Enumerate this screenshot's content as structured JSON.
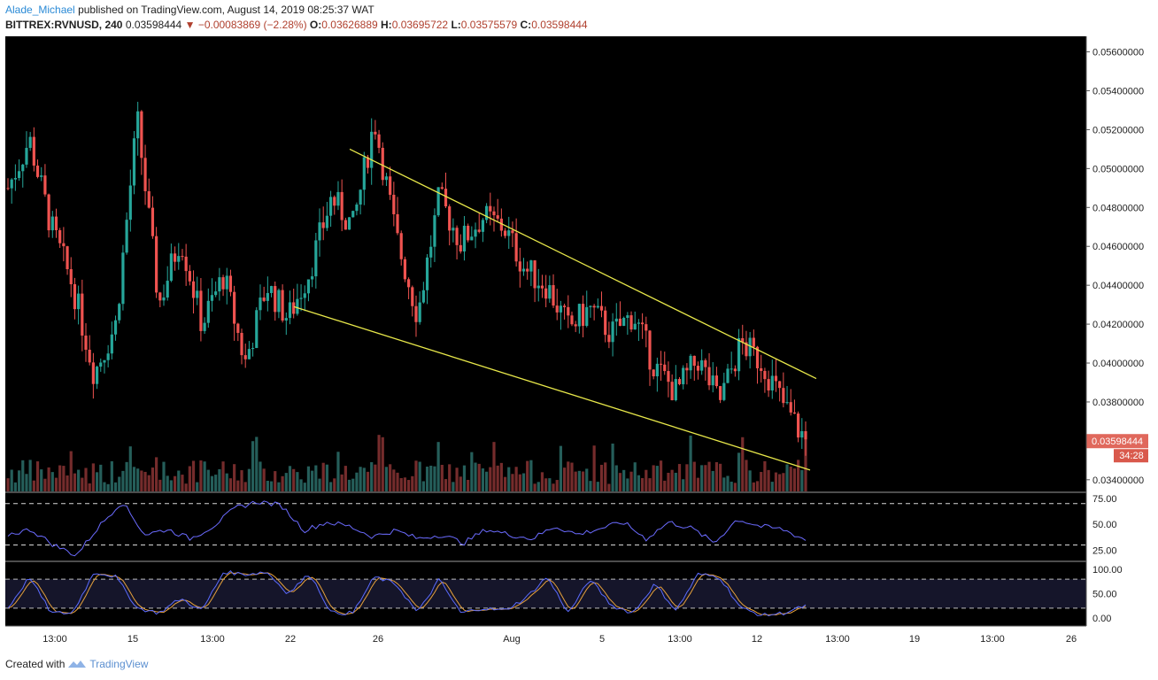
{
  "header": {
    "user": "Alade_Michael",
    "published": "published on TradingView.com, August 14, 2019 08:25:37 WAT",
    "symbol": "BITTREX:RVNUSD, 240",
    "last": "0.03598444",
    "change": "−0.00083869 (−2.28%)",
    "o_label": "O:",
    "o": "0.03626889",
    "h_label": "H:",
    "h": "0.03695722",
    "l_label": "L:",
    "l": "0.03575579",
    "c_label": "C:",
    "c": "0.03598444"
  },
  "footer": {
    "created": "Created with",
    "brand": "TradingView"
  },
  "colors": {
    "up": "#26a69a",
    "down": "#ef5350",
    "rsi": "#6b6bff",
    "stochK": "#5b6bff",
    "stochD": "#e6a13c",
    "trend": "#e8e84a"
  },
  "price_badge": "0.03598444",
  "countdown": "34:28",
  "chart_data": [
    {
      "type": "candlestick",
      "title": "",
      "ylim": [
        0.0334,
        0.0568
      ],
      "y_ticks": [
        "0.05600000",
        "0.05400000",
        "0.05200000",
        "0.05000000",
        "0.04800000",
        "0.04600000",
        "0.04400000",
        "0.04200000",
        "0.04000000",
        "0.03800000",
        "0.03600000",
        "0.03400000"
      ],
      "x_ticks": [
        "13:00",
        "15",
        "13:00",
        "22",
        "26",
        "Aug",
        "5",
        "13:00",
        "12",
        "13:00",
        "19",
        "13:00",
        "26"
      ],
      "keypoints": [
        0.049,
        0.0515,
        0.047,
        0.044,
        0.0395,
        0.042,
        0.0525,
        0.043,
        0.0465,
        0.042,
        0.0445,
        0.04,
        0.044,
        0.0423,
        0.0448,
        0.0485,
        0.047,
        0.0525,
        0.0465,
        0.0425,
        0.0485,
        0.0462,
        0.0475,
        0.047,
        0.0448,
        0.044,
        0.0418,
        0.0428,
        0.0415,
        0.0425,
        0.0398,
        0.0385,
        0.0402,
        0.038,
        0.041,
        0.04,
        0.0378,
        0.036
      ],
      "trendlines": [
        {
          "name": "upper",
          "from": [
            "26",
            0.051
          ],
          "to": [
            "13:00",
            0.0392
          ]
        },
        {
          "name": "lower",
          "from": [
            "22",
            0.0429
          ],
          "to": [
            "13:00",
            0.0345
          ]
        }
      ]
    },
    {
      "type": "line",
      "name": "RSI",
      "ylim": [
        15,
        80
      ],
      "y_ticks": [
        "75.00",
        "50.00",
        "25.00"
      ],
      "levels": [
        70,
        30
      ],
      "keypoints": [
        40,
        45,
        30,
        20,
        48,
        72,
        40,
        45,
        36,
        48,
        66,
        72,
        68,
        44,
        52,
        48,
        38,
        44,
        36,
        40,
        32,
        45,
        40,
        36,
        48,
        40,
        46,
        52,
        36,
        52,
        46,
        32,
        55,
        48,
        45,
        35
      ]
    },
    {
      "type": "line",
      "name": "Stochastic",
      "ylim": [
        -15,
        115
      ],
      "y_ticks": [
        "100.00",
        "50.00",
        "0.00"
      ],
      "levels": [
        80,
        20
      ],
      "keypoints": [
        20,
        85,
        10,
        10,
        95,
        85,
        20,
        10,
        40,
        15,
        95,
        90,
        95,
        50,
        92,
        10,
        10,
        85,
        70,
        10,
        80,
        10,
        20,
        15,
        40,
        85,
        10,
        80,
        25,
        10,
        70,
        15,
        90,
        85,
        20,
        5,
        10,
        25
      ]
    }
  ]
}
